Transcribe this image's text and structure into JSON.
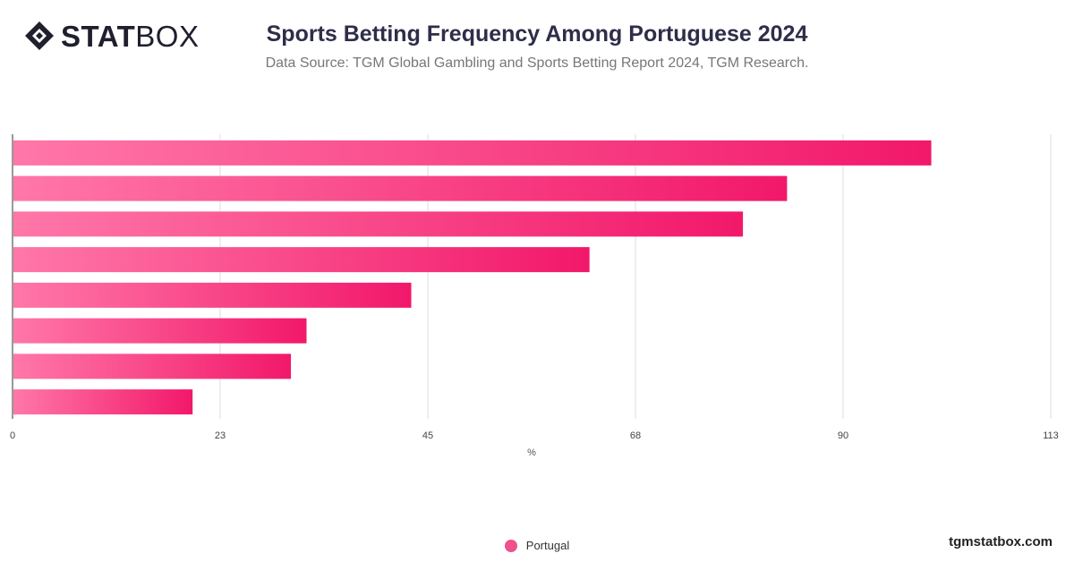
{
  "brand": {
    "logo_bold": "STAT",
    "logo_light": "BOX",
    "site": "tgmstatbox.com",
    "bar_color_start": "#ff77a8",
    "bar_color_end": "#f2186a"
  },
  "chart_data": {
    "type": "bar",
    "orientation": "horizontal",
    "title": "Sports Betting Frequency Among Portuguese 2024",
    "subtitle": "Data Source: TGM Global Gambling and Sports Betting Report 2024, TGM Research.",
    "xlabel": "%",
    "ylabel": "",
    "xlim": [
      0,
      113
    ],
    "xticks": [
      "0",
      "23",
      "45",
      "68",
      "90",
      "113"
    ],
    "xtick_values": [
      0,
      22.6,
      45.2,
      67.8,
      90.4,
      113
    ],
    "grid": true,
    "legend_position": "bottom",
    "categories": [
      "",
      "",
      "",
      "",
      "",
      "",
      "",
      ""
    ],
    "series": [
      {
        "name": "Portugal",
        "values": [
          100,
          84.3,
          79.5,
          62.8,
          43.4,
          32,
          30.3,
          19.6
        ]
      }
    ]
  }
}
